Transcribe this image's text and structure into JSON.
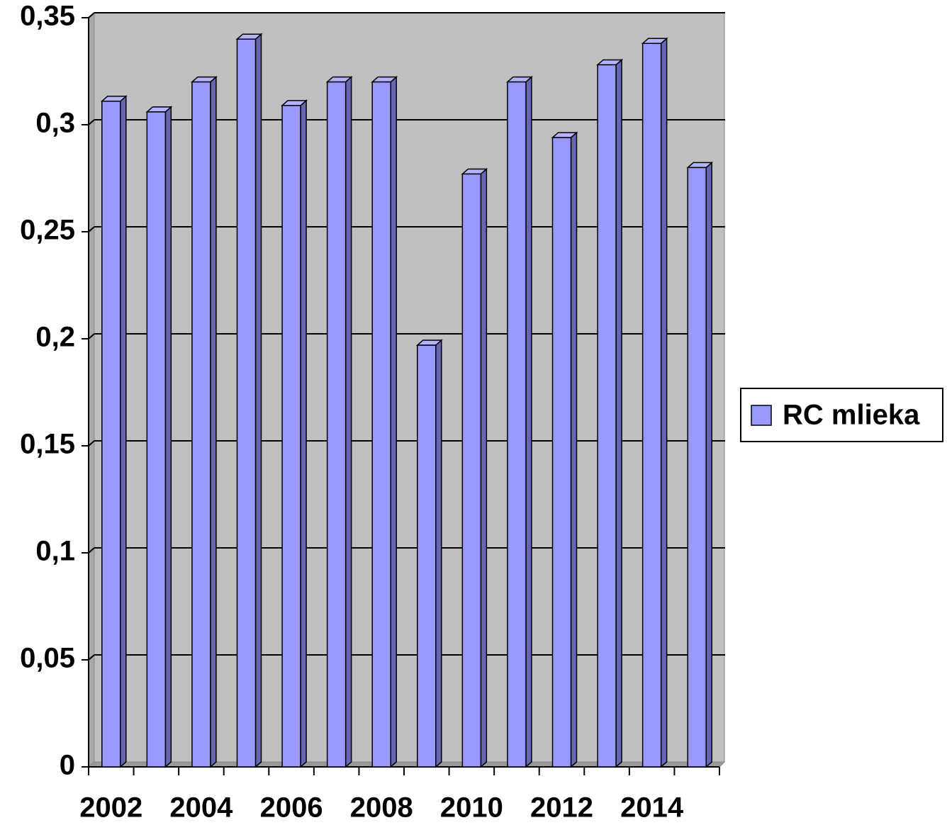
{
  "chart_data": {
    "type": "bar3d",
    "categories": [
      "2002",
      null,
      "2004",
      null,
      "2006",
      null,
      "2008",
      null,
      "2010",
      null,
      "2012",
      null,
      "2014",
      null
    ],
    "series": [
      {
        "name": "RC mlieka",
        "color": "#9999ff",
        "values": [
          0.311,
          0.306,
          0.32,
          0.34,
          0.309,
          0.32,
          0.32,
          0.197,
          0.277,
          0.32,
          0.294,
          0.328,
          0.338,
          0.28
        ]
      }
    ],
    "ylim": [
      0,
      0.35
    ],
    "yticks": [
      0,
      {
        "value": 0.05,
        "label": "0,05"
      },
      {
        "value": 0.1,
        "label": "0,1"
      },
      {
        "value": 0.15,
        "label": "0,15"
      },
      {
        "value": 0.2,
        "label": "0,2"
      },
      {
        "value": 0.25,
        "label": "0,25"
      },
      {
        "value": 0.3,
        "label": "0,3"
      },
      {
        "value": 0.35,
        "label": "0,35"
      }
    ],
    "grid": true,
    "legend": "right"
  }
}
